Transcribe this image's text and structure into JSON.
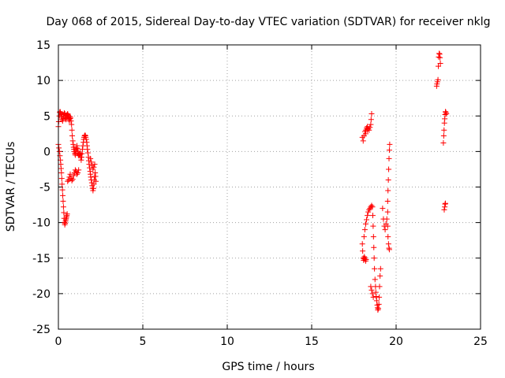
{
  "chart_data": {
    "type": "scatter",
    "title": "Day 068 of 2015, Sidereal Day-to-day VTEC variation (SDTVAR) for receiver nklg",
    "xlabel": "GPS time / hours",
    "ylabel": "SDTVAR / TECUs",
    "xlim": [
      0,
      25
    ],
    "ylim": [
      -25,
      15
    ],
    "xticks": [
      0,
      5,
      10,
      15,
      20,
      25
    ],
    "yticks": [
      -25,
      -20,
      -15,
      -10,
      -5,
      0,
      5,
      10,
      15
    ],
    "grid": true,
    "marker": "plus",
    "color": "#ff0000",
    "series": [
      {
        "name": "SDTVAR",
        "points": [
          [
            0.0,
            3.5
          ],
          [
            0.02,
            4.2
          ],
          [
            0.05,
            5.0
          ],
          [
            0.08,
            5.5
          ],
          [
            0.1,
            5.6
          ],
          [
            0.12,
            5.5
          ],
          [
            0.15,
            5.3
          ],
          [
            0.18,
            5.0
          ],
          [
            0.2,
            4.8
          ],
          [
            0.22,
            4.5
          ],
          [
            0.25,
            4.3
          ],
          [
            0.28,
            4.6
          ],
          [
            0.3,
            5.0
          ],
          [
            0.32,
            5.2
          ],
          [
            0.35,
            5.4
          ],
          [
            0.38,
            5.3
          ],
          [
            0.4,
            5.0
          ],
          [
            0.42,
            4.7
          ],
          [
            0.45,
            4.5
          ],
          [
            0.48,
            4.8
          ],
          [
            0.5,
            5.0
          ],
          [
            0.52,
            5.2
          ],
          [
            0.55,
            5.3
          ],
          [
            0.58,
            5.1
          ],
          [
            0.6,
            4.8
          ],
          [
            0.62,
            4.5
          ],
          [
            0.65,
            4.3
          ],
          [
            0.68,
            4.6
          ],
          [
            0.7,
            4.9
          ],
          [
            0.72,
            4.7
          ],
          [
            0.75,
            4.3
          ],
          [
            0.78,
            3.8
          ],
          [
            0.8,
            3.0
          ],
          [
            0.82,
            2.2
          ],
          [
            0.85,
            1.5
          ],
          [
            0.88,
            1.0
          ],
          [
            0.9,
            0.6
          ],
          [
            0.92,
            0.3
          ],
          [
            0.95,
            0.0
          ],
          [
            0.98,
            -0.3
          ],
          [
            1.0,
            -0.5
          ],
          [
            1.02,
            -0.2
          ],
          [
            1.05,
            0.2
          ],
          [
            1.08,
            0.5
          ],
          [
            1.1,
            0.8
          ],
          [
            1.12,
            0.4
          ],
          [
            1.15,
            0.0
          ],
          [
            1.18,
            -0.3
          ],
          [
            1.2,
            -0.5
          ],
          [
            1.22,
            -0.6
          ],
          [
            1.25,
            -0.4
          ],
          [
            1.28,
            -0.2
          ],
          [
            1.3,
            -0.4
          ],
          [
            1.32,
            -0.8
          ],
          [
            1.35,
            -1.2
          ],
          [
            1.38,
            -0.8
          ],
          [
            1.4,
            -0.3
          ],
          [
            1.42,
            0.3
          ],
          [
            1.45,
            0.8
          ],
          [
            1.48,
            1.3
          ],
          [
            1.5,
            1.7
          ],
          [
            1.52,
            2.0
          ],
          [
            1.55,
            2.2
          ],
          [
            1.58,
            2.3
          ],
          [
            1.6,
            2.2
          ],
          [
            1.62,
            2.0
          ],
          [
            1.65,
            1.7
          ],
          [
            1.68,
            1.3
          ],
          [
            1.7,
            0.8
          ],
          [
            1.72,
            0.3
          ],
          [
            1.75,
            -0.2
          ],
          [
            1.78,
            -0.8
          ],
          [
            1.8,
            -1.3
          ],
          [
            1.82,
            -1.8
          ],
          [
            1.85,
            -2.3
          ],
          [
            1.88,
            -2.8
          ],
          [
            1.9,
            -3.2
          ],
          [
            1.92,
            -3.6
          ],
          [
            1.95,
            -4.0
          ],
          [
            1.98,
            -4.4
          ],
          [
            2.0,
            -4.8
          ],
          [
            2.02,
            -5.2
          ],
          [
            2.05,
            -5.5
          ],
          [
            2.08,
            -5.2
          ],
          [
            2.1,
            -4.6
          ],
          [
            2.12,
            -4.0
          ],
          [
            2.15,
            -3.5
          ],
          [
            2.18,
            -3.0
          ],
          [
            2.2,
            -3.5
          ],
          [
            2.22,
            -4.2
          ],
          [
            0.55,
            -4.2
          ],
          [
            0.6,
            -4.0
          ],
          [
            0.65,
            -3.6
          ],
          [
            0.7,
            -3.2
          ],
          [
            0.75,
            -3.8
          ],
          [
            0.8,
            -4.1
          ],
          [
            0.85,
            -3.9
          ],
          [
            0.9,
            -3.4
          ],
          [
            0.95,
            -3.0
          ],
          [
            1.0,
            -2.6
          ],
          [
            1.05,
            -2.8
          ],
          [
            1.1,
            -3.2
          ],
          [
            1.15,
            -3.0
          ],
          [
            1.2,
            -2.6
          ],
          [
            1.9,
            -1.0
          ],
          [
            1.95,
            -1.5
          ],
          [
            2.0,
            -2.0
          ],
          [
            2.05,
            -2.5
          ],
          [
            2.1,
            -2.2
          ],
          [
            2.15,
            -1.8
          ],
          [
            0.0,
            1.0
          ],
          [
            0.03,
            0.5
          ],
          [
            0.06,
            0.0
          ],
          [
            0.09,
            -0.6
          ],
          [
            0.12,
            -1.2
          ],
          [
            0.14,
            -1.8
          ],
          [
            0.16,
            -2.4
          ],
          [
            0.18,
            -3.0
          ],
          [
            0.2,
            -3.8
          ],
          [
            0.22,
            -4.6
          ],
          [
            0.24,
            -5.4
          ],
          [
            0.26,
            -6.2
          ],
          [
            0.28,
            -7.0
          ],
          [
            0.3,
            -7.8
          ],
          [
            0.32,
            -8.6
          ],
          [
            0.34,
            -9.4
          ],
          [
            0.36,
            -10.0
          ],
          [
            0.38,
            -10.3
          ],
          [
            0.4,
            -10.1
          ],
          [
            0.42,
            -9.8
          ],
          [
            0.44,
            -9.6
          ],
          [
            0.46,
            -9.4
          ],
          [
            0.48,
            -9.2
          ],
          [
            0.5,
            -9.0
          ],
          [
            0.52,
            -8.8
          ],
          [
            18.0,
            -13.0
          ],
          [
            18.02,
            -14.0
          ],
          [
            18.05,
            -15.0
          ],
          [
            18.08,
            -15.3
          ],
          [
            18.1,
            -15.1
          ],
          [
            18.12,
            -14.8
          ],
          [
            18.15,
            -15.0
          ],
          [
            18.18,
            -15.2
          ],
          [
            18.2,
            -15.4
          ],
          [
            18.22,
            -15.2
          ],
          [
            18.1,
            -12.0
          ],
          [
            18.15,
            -11.0
          ],
          [
            18.2,
            -10.2
          ],
          [
            18.25,
            -9.6
          ],
          [
            18.3,
            -9.0
          ],
          [
            18.35,
            -8.5
          ],
          [
            18.4,
            -8.2
          ],
          [
            18.45,
            -8.0
          ],
          [
            18.5,
            -7.8
          ],
          [
            18.55,
            -7.6
          ],
          [
            18.6,
            -7.8
          ],
          [
            18.62,
            -9.0
          ],
          [
            18.64,
            -10.5
          ],
          [
            18.66,
            -12.0
          ],
          [
            18.68,
            -13.5
          ],
          [
            18.7,
            -15.0
          ],
          [
            18.72,
            -16.5
          ],
          [
            18.75,
            -18.0
          ],
          [
            18.78,
            -19.0
          ],
          [
            18.8,
            -19.8
          ],
          [
            18.82,
            -20.4
          ],
          [
            18.85,
            -21.0
          ],
          [
            18.88,
            -21.6
          ],
          [
            18.9,
            -22.0
          ],
          [
            18.92,
            -22.3
          ],
          [
            18.95,
            -22.1
          ],
          [
            18.98,
            -21.5
          ],
          [
            19.0,
            -20.5
          ],
          [
            19.02,
            -19.0
          ],
          [
            19.05,
            -17.5
          ],
          [
            19.08,
            -16.5
          ],
          [
            18.5,
            -19.0
          ],
          [
            18.55,
            -19.5
          ],
          [
            18.6,
            -20.0
          ],
          [
            18.65,
            -20.5
          ],
          [
            18.0,
            2.0
          ],
          [
            18.05,
            1.5
          ],
          [
            18.1,
            2.2
          ],
          [
            18.15,
            2.8
          ],
          [
            18.2,
            3.0
          ],
          [
            18.25,
            3.3
          ],
          [
            18.3,
            3.5
          ],
          [
            18.35,
            3.2
          ],
          [
            18.4,
            3.0
          ],
          [
            18.45,
            3.4
          ],
          [
            18.5,
            3.8
          ],
          [
            18.52,
            4.5
          ],
          [
            18.55,
            5.3
          ],
          [
            18.2,
            2.5
          ],
          [
            18.3,
            3.0
          ],
          [
            19.2,
            -8.0
          ],
          [
            19.25,
            -9.5
          ],
          [
            19.3,
            -10.5
          ],
          [
            19.35,
            -11.0
          ],
          [
            19.4,
            -10.2
          ],
          [
            19.45,
            -9.5
          ],
          [
            19.5,
            -10.5
          ],
          [
            19.52,
            -12.0
          ],
          [
            19.55,
            -13.0
          ],
          [
            19.58,
            -13.6
          ],
          [
            19.6,
            -13.8
          ],
          [
            19.5,
            -8.5
          ],
          [
            19.5,
            -7.0
          ],
          [
            19.52,
            -5.5
          ],
          [
            19.54,
            -4.0
          ],
          [
            19.56,
            -2.5
          ],
          [
            19.58,
            -1.0
          ],
          [
            19.6,
            0.2
          ],
          [
            19.62,
            1.0
          ],
          [
            22.4,
            9.2
          ],
          [
            22.42,
            9.5
          ],
          [
            22.45,
            9.8
          ],
          [
            22.48,
            10.1
          ],
          [
            22.5,
            12.0
          ],
          [
            22.52,
            13.3
          ],
          [
            22.55,
            13.8
          ],
          [
            22.58,
            13.7
          ],
          [
            22.6,
            13.2
          ],
          [
            22.62,
            12.4
          ],
          [
            22.85,
            -8.2
          ],
          [
            22.88,
            -7.8
          ],
          [
            22.9,
            -7.4
          ],
          [
            22.92,
            -7.3
          ],
          [
            22.8,
            1.2
          ],
          [
            22.82,
            2.2
          ],
          [
            22.84,
            3.0
          ],
          [
            22.86,
            4.0
          ],
          [
            22.88,
            4.6
          ],
          [
            22.9,
            5.2
          ],
          [
            22.92,
            5.6
          ],
          [
            22.95,
            5.5
          ],
          [
            22.98,
            5.3
          ]
        ]
      }
    ]
  }
}
